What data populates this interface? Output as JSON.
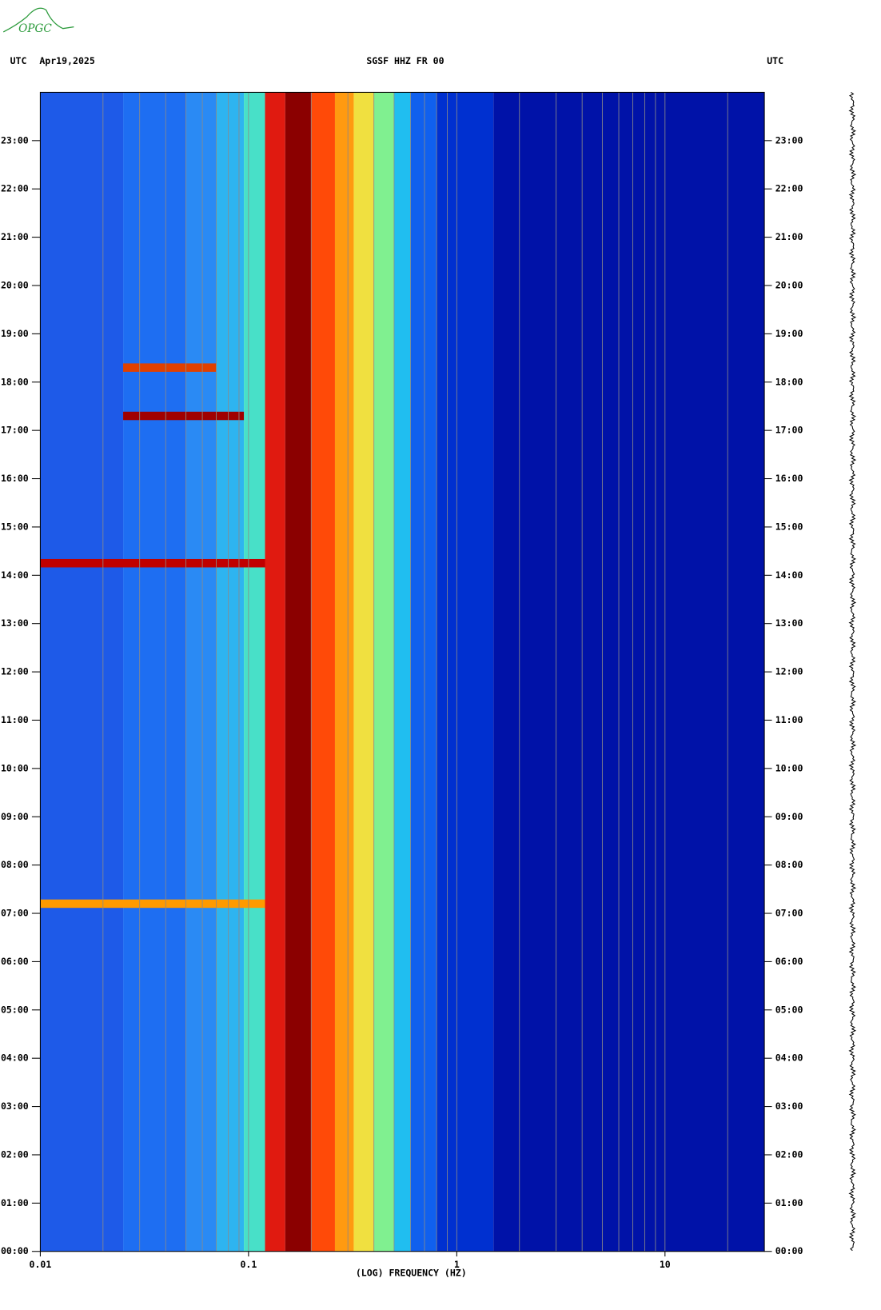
{
  "logo": "OPGC",
  "header": {
    "left_tz": "UTC",
    "date": "Apr19,2025",
    "station": "SGSF HHZ FR 00",
    "right_tz": "UTC"
  },
  "chart_data": {
    "type": "spectrogram",
    "xlabel": "(LOG) FREQUENCY (HZ)",
    "log_x": true,
    "minor_grid": true,
    "grid_color": "#8a8a8a",
    "xlim": [
      0.01,
      30
    ],
    "xticks": [
      0.01,
      0.1,
      1,
      10
    ],
    "ylim": [
      0,
      24
    ],
    "yticks": [
      {
        "value": 0,
        "label": "00:00"
      },
      {
        "value": 1,
        "label": "01:00"
      },
      {
        "value": 2,
        "label": "02:00"
      },
      {
        "value": 3,
        "label": "03:00"
      },
      {
        "value": 4,
        "label": "04:00"
      },
      {
        "value": 5,
        "label": "05:00"
      },
      {
        "value": 6,
        "label": "06:00"
      },
      {
        "value": 7,
        "label": "07:00"
      },
      {
        "value": 8,
        "label": "08:00"
      },
      {
        "value": 9,
        "label": "09:00"
      },
      {
        "value": 10,
        "label": "10:00"
      },
      {
        "value": 11,
        "label": "11:00"
      },
      {
        "value": 12,
        "label": "12:00"
      },
      {
        "value": 13,
        "label": "13:00"
      },
      {
        "value": 14,
        "label": "14:00"
      },
      {
        "value": 15,
        "label": "15:00"
      },
      {
        "value": 16,
        "label": "16:00"
      },
      {
        "value": 17,
        "label": "17:00"
      },
      {
        "value": 18,
        "label": "18:00"
      },
      {
        "value": 19,
        "label": "19:00"
      },
      {
        "value": 20,
        "label": "20:00"
      },
      {
        "value": 21,
        "label": "21:00"
      },
      {
        "value": 22,
        "label": "22:00"
      },
      {
        "value": 23,
        "label": "23:00"
      }
    ],
    "bands": {
      "edges": [
        0.01,
        0.025,
        0.05,
        0.07,
        0.095,
        0.12,
        0.15,
        0.2,
        0.26,
        0.32,
        0.4,
        0.5,
        0.6,
        0.8,
        1.5,
        30
      ],
      "colors": [
        "#1e5ae8",
        "#1e6ef2",
        "#2a8af4",
        "#2eb4f0",
        "#48e0c8",
        "#e01a10",
        "#8b0000",
        "#ff4a08",
        "#ff9a10",
        "#f0e040",
        "#80f090",
        "#20bef0",
        "#1060ee",
        "#0030d0",
        "#0012a8"
      ]
    },
    "events": [
      {
        "time": 7.2,
        "from": 0.01,
        "to": 0.12,
        "color": "#ff9a00"
      },
      {
        "time": 14.25,
        "from": 0.01,
        "to": 0.12,
        "color": "#c00000"
      },
      {
        "time": 17.3,
        "from": 0.025,
        "to": 0.095,
        "color": "#a00000"
      },
      {
        "time": 18.3,
        "from": 0.025,
        "to": 0.07,
        "color": "#e04000"
      }
    ]
  }
}
